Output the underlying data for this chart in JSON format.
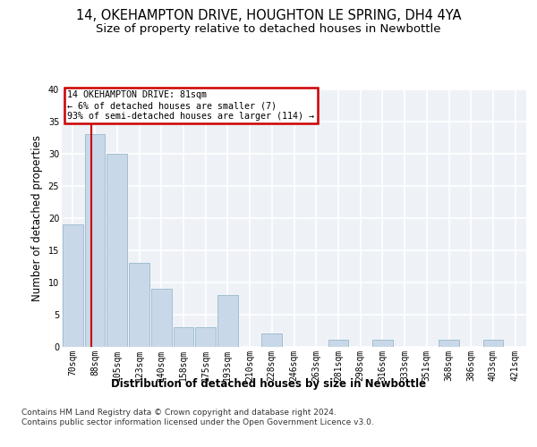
{
  "title": "14, OKEHAMPTON DRIVE, HOUGHTON LE SPRING, DH4 4YA",
  "subtitle": "Size of property relative to detached houses in Newbottle",
  "xlabel": "Distribution of detached houses by size in Newbottle",
  "ylabel": "Number of detached properties",
  "categories": [
    "70sqm",
    "88sqm",
    "105sqm",
    "123sqm",
    "140sqm",
    "158sqm",
    "175sqm",
    "193sqm",
    "210sqm",
    "228sqm",
    "246sqm",
    "263sqm",
    "281sqm",
    "298sqm",
    "316sqm",
    "333sqm",
    "351sqm",
    "368sqm",
    "386sqm",
    "403sqm",
    "421sqm"
  ],
  "values": [
    19,
    33,
    30,
    13,
    9,
    3,
    3,
    8,
    0,
    2,
    0,
    0,
    1,
    0,
    1,
    0,
    0,
    1,
    0,
    1,
    0
  ],
  "bar_color": "#c8d8e8",
  "bar_edge_color": "#9ab8cc",
  "vline_color": "#cc0000",
  "vline_x": 0.82,
  "annotation_text": "14 OKEHAMPTON DRIVE: 81sqm\n← 6% of detached houses are smaller (7)\n93% of semi-detached houses are larger (114) →",
  "annotation_box_edge": "#cc0000",
  "bg_color": "#eef2f7",
  "ylim": [
    0,
    40
  ],
  "yticks": [
    0,
    5,
    10,
    15,
    20,
    25,
    30,
    35,
    40
  ],
  "title_fontsize": 10.5,
  "subtitle_fontsize": 9.5,
  "tick_fontsize": 7,
  "ylabel_fontsize": 8.5,
  "xlabel_fontsize": 8.5,
  "footer": "Contains HM Land Registry data © Crown copyright and database right 2024.\nContains public sector information licensed under the Open Government Licence v3.0.",
  "footer_fontsize": 6.5
}
